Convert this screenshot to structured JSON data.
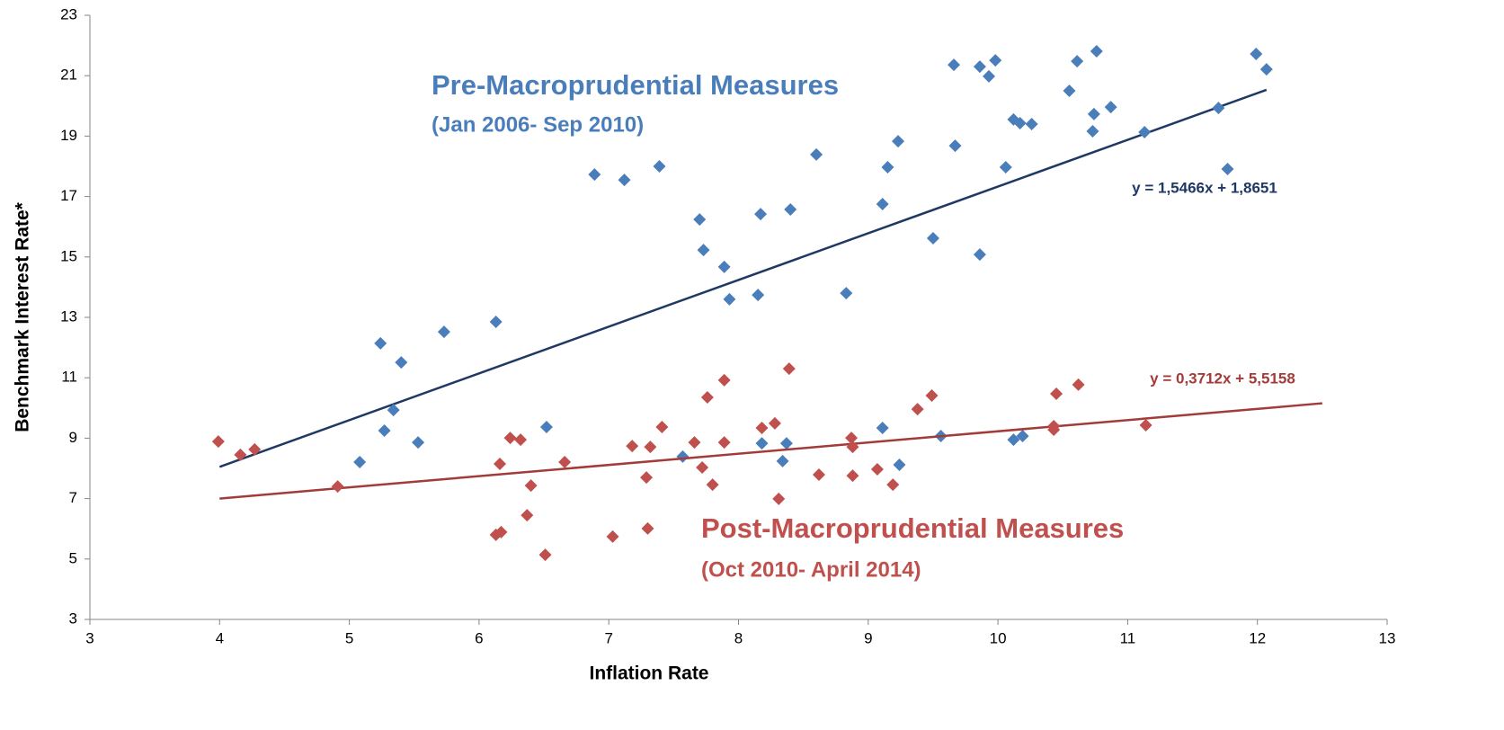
{
  "chart_data": {
    "type": "scatter",
    "x_label": "Inflation Rate",
    "y_label": "Benchmark Interest Rate*",
    "xlim": [
      3,
      13
    ],
    "xticks": [
      3,
      4,
      5,
      6,
      7,
      8,
      9,
      10,
      11,
      12,
      13
    ],
    "ylim": [
      3,
      23
    ],
    "yticks": [
      3,
      5,
      7,
      9,
      11,
      13,
      15,
      17,
      19,
      21,
      23
    ],
    "grid": false,
    "series": [
      {
        "name": "Pre-Macroprudential Measures",
        "period": "(Jan 2006- Sep 2010)",
        "color": "#4a7ebb",
        "trend_color": "#1f3864",
        "trend": {
          "slope": 1.5466,
          "intercept": 1.8651,
          "label": "y = 1,5466x + 1,8651",
          "x_range": [
            4,
            12.07
          ]
        },
        "x": [
          5.08,
          5.24,
          5.27,
          5.34,
          5.4,
          5.53,
          5.73,
          6.13,
          6.52,
          6.89,
          7.12,
          7.39,
          7.57,
          7.7,
          7.73,
          7.89,
          7.93,
          8.15,
          8.17,
          8.18,
          8.34,
          8.37,
          8.4,
          8.6,
          8.83,
          9.11,
          9.11,
          9.15,
          9.23,
          9.24,
          9.5,
          9.56,
          9.66,
          9.67,
          9.86,
          9.86,
          9.93,
          9.98,
          10.06,
          10.12,
          10.12,
          10.17,
          10.19,
          10.26,
          10.55,
          10.61,
          10.73,
          10.74,
          10.76,
          10.87,
          11.13,
          11.7,
          11.77,
          11.99,
          12.07
        ],
        "values": [
          8.21,
          12.14,
          9.25,
          9.93,
          11.51,
          8.86,
          12.52,
          12.85,
          9.37,
          17.73,
          17.55,
          18.0,
          8.39,
          16.24,
          15.23,
          14.67,
          13.6,
          13.74,
          16.42,
          8.83,
          8.24,
          8.83,
          16.57,
          18.39,
          13.8,
          16.75,
          9.34,
          17.97,
          18.83,
          8.12,
          15.62,
          9.07,
          21.36,
          18.68,
          15.08,
          21.3,
          20.98,
          21.51,
          17.97,
          19.55,
          8.95,
          19.43,
          9.07,
          19.4,
          20.5,
          21.48,
          19.16,
          19.73,
          21.81,
          19.96,
          19.13,
          19.93,
          17.91,
          21.72,
          21.21
        ]
      },
      {
        "name": "Post-Macroprudential Measures",
        "period": "(Oct 2010- April 2014)",
        "color": "#c0504d",
        "trend_color": "#a33b39",
        "trend": {
          "slope": 0.3712,
          "intercept": 5.5158,
          "label": "y = 0,3712x + 5,5158",
          "x_range": [
            4,
            12.5
          ]
        },
        "x": [
          3.99,
          4.16,
          4.27,
          4.91,
          6.16,
          6.13,
          6.17,
          6.24,
          6.32,
          6.4,
          6.37,
          6.51,
          6.66,
          7.03,
          7.18,
          7.29,
          7.3,
          7.32,
          7.41,
          7.66,
          7.72,
          7.76,
          7.8,
          7.89,
          7.89,
          8.18,
          8.28,
          8.31,
          8.39,
          8.62,
          8.87,
          8.88,
          8.88,
          9.07,
          9.19,
          9.38,
          9.49,
          10.43,
          10.43,
          10.45,
          10.62,
          11.14
        ],
        "values": [
          8.89,
          8.45,
          8.63,
          7.4,
          8.15,
          5.8,
          5.89,
          9.01,
          8.95,
          7.43,
          6.45,
          5.14,
          8.21,
          5.74,
          8.74,
          7.7,
          6.01,
          8.71,
          9.37,
          8.86,
          8.03,
          10.35,
          7.46,
          8.86,
          10.92,
          9.34,
          9.49,
          6.99,
          11.3,
          7.79,
          9.01,
          8.71,
          7.76,
          7.97,
          7.46,
          9.96,
          10.41,
          9.4,
          9.28,
          10.47,
          10.77,
          9.43
        ]
      }
    ]
  }
}
